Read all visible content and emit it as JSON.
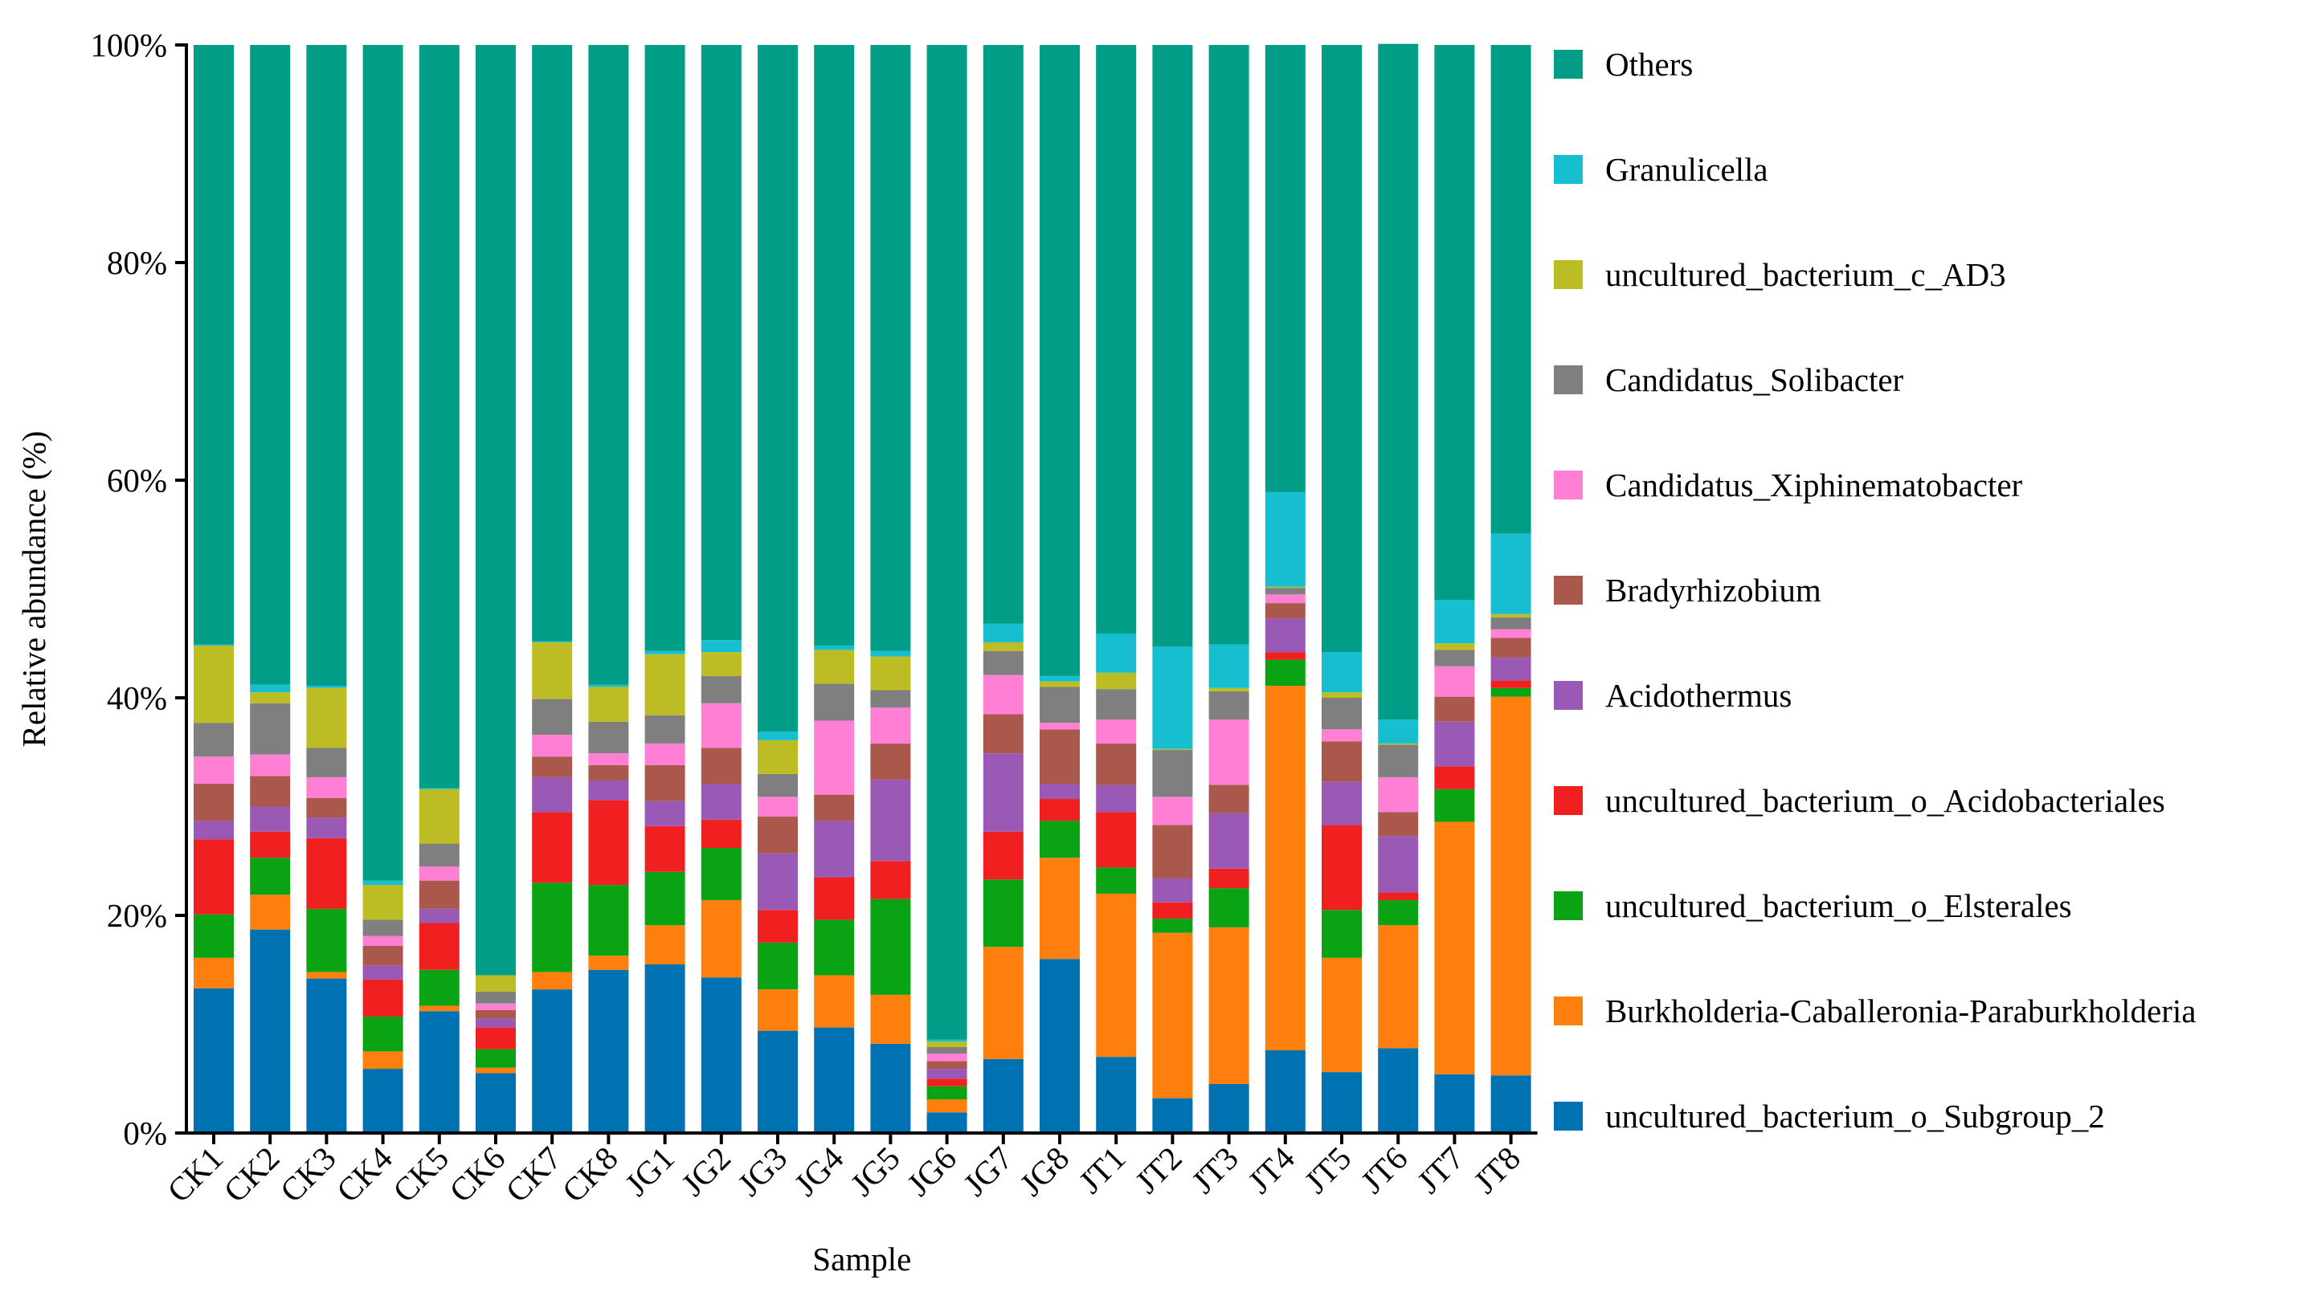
{
  "chart_data": {
    "type": "bar",
    "stacked": true,
    "xlabel": "Sample",
    "ylabel": "Relative abundance (%)",
    "ylim": [
      0,
      100
    ],
    "y_ticks": [
      "0%",
      "20%",
      "40%",
      "60%",
      "80%",
      "100%"
    ],
    "grid": false,
    "legend_position": "right",
    "categories": [
      "CK1",
      "CK2",
      "CK3",
      "CK4",
      "CK5",
      "CK6",
      "CK7",
      "CK8",
      "JG1",
      "JG2",
      "JG3",
      "JG4",
      "JG5",
      "JG6",
      "JG7",
      "JG8",
      "JT1",
      "JT2",
      "JT3",
      "JT4",
      "JT5",
      "JT6",
      "JT7",
      "JT8"
    ],
    "series": [
      {
        "name": "uncultured_bacterium_o_Subgroup_2",
        "color": "#0072B2",
        "values": [
          13.3,
          18.7,
          14.2,
          5.9,
          11.2,
          5.5,
          13.2,
          15.0,
          15.5,
          14.3,
          9.4,
          9.7,
          8.2,
          1.9,
          6.8,
          16.0,
          7.0,
          3.2,
          4.5,
          7.6,
          5.6,
          7.8,
          5.4,
          5.3
        ]
      },
      {
        "name": "Burkholderia-Caballeronia-Paraburkholderia",
        "color": "#FF7F0E",
        "values": [
          2.8,
          3.2,
          0.6,
          1.6,
          0.5,
          0.5,
          1.6,
          1.3,
          3.6,
          7.1,
          3.8,
          4.8,
          4.5,
          1.2,
          10.3,
          9.3,
          15.0,
          15.2,
          14.4,
          33.5,
          10.5,
          11.3,
          23.2,
          34.8
        ]
      },
      {
        "name": "uncultured_bacterium_o_Elsterales",
        "color": "#0AA313",
        "values": [
          4.0,
          3.4,
          5.8,
          3.2,
          3.3,
          1.7,
          8.2,
          6.5,
          4.9,
          4.8,
          4.3,
          5.1,
          8.8,
          1.2,
          6.2,
          3.4,
          2.4,
          1.3,
          3.6,
          2.4,
          4.4,
          2.3,
          3.0,
          0.8
        ]
      },
      {
        "name": "uncultured_bacterium_o_Acidobacteriales",
        "color": "#F02020",
        "values": [
          6.9,
          2.4,
          6.5,
          3.4,
          4.3,
          2.0,
          6.5,
          7.8,
          4.2,
          2.6,
          3.0,
          3.9,
          3.5,
          0.7,
          4.4,
          2.0,
          5.1,
          1.5,
          1.8,
          0.7,
          7.8,
          0.7,
          2.1,
          0.7
        ]
      },
      {
        "name": "Acidothermus",
        "color": "#9B59B6",
        "values": [
          1.7,
          2.3,
          1.9,
          1.3,
          1.3,
          0.8,
          3.2,
          1.8,
          2.3,
          3.3,
          5.2,
          5.2,
          7.5,
          0.9,
          7.2,
          1.4,
          2.5,
          2.2,
          5.1,
          3.1,
          4.0,
          5.2,
          4.1,
          2.1
        ]
      },
      {
        "name": "Bradyrhizobium",
        "color": "#A9584B",
        "values": [
          3.4,
          2.8,
          1.8,
          1.8,
          2.6,
          0.8,
          1.9,
          1.4,
          3.3,
          3.3,
          3.4,
          2.4,
          3.3,
          0.7,
          3.6,
          5.0,
          3.8,
          4.9,
          2.6,
          1.4,
          3.7,
          2.2,
          2.3,
          1.8
        ]
      },
      {
        "name": "Candidatus_Xiphinematobacter",
        "color": "#FF7FD4",
        "values": [
          2.5,
          2.0,
          1.9,
          0.9,
          1.3,
          0.6,
          2.0,
          1.1,
          2.0,
          4.1,
          1.8,
          6.8,
          3.3,
          0.7,
          3.6,
          0.6,
          2.2,
          2.6,
          6.0,
          0.8,
          1.1,
          3.2,
          2.8,
          0.8
        ]
      },
      {
        "name": "Candidatus_Solibacter",
        "color": "#7F7F7F",
        "values": [
          3.1,
          4.7,
          2.7,
          1.5,
          2.1,
          1.1,
          3.3,
          2.9,
          2.6,
          2.5,
          2.1,
          3.4,
          1.6,
          0.6,
          2.2,
          3.3,
          2.8,
          4.3,
          2.6,
          0.6,
          2.9,
          3.0,
          1.5,
          1.1
        ]
      },
      {
        "name": "uncultured_bacterium_c_AD3",
        "color": "#BCBD22",
        "values": [
          7.1,
          1.0,
          5.5,
          3.2,
          5.0,
          1.5,
          5.2,
          3.2,
          5.6,
          2.2,
          3.1,
          3.1,
          3.1,
          0.5,
          0.8,
          0.5,
          1.5,
          0.1,
          0.3,
          0.1,
          0.5,
          0.1,
          0.6,
          0.3
        ]
      },
      {
        "name": "Granulicella",
        "color": "#17BECF",
        "values": [
          0.1,
          0.7,
          0.2,
          0.4,
          0.1,
          0.0,
          0.1,
          0.2,
          0.3,
          1.1,
          0.8,
          0.4,
          0.5,
          0.2,
          1.7,
          0.5,
          3.6,
          9.4,
          4.0,
          8.7,
          3.7,
          2.2,
          4.0,
          7.4
        ]
      },
      {
        "name": "Others",
        "color": "#009E87",
        "values": [
          55.1,
          58.8,
          58.9,
          76.8,
          68.3,
          85.5,
          54.8,
          58.8,
          55.7,
          54.7,
          63.1,
          55.2,
          55.7,
          91.4,
          53.2,
          58.0,
          54.1,
          55.3,
          55.1,
          41.1,
          55.8,
          62.1,
          51.0,
          44.9
        ]
      }
    ]
  }
}
